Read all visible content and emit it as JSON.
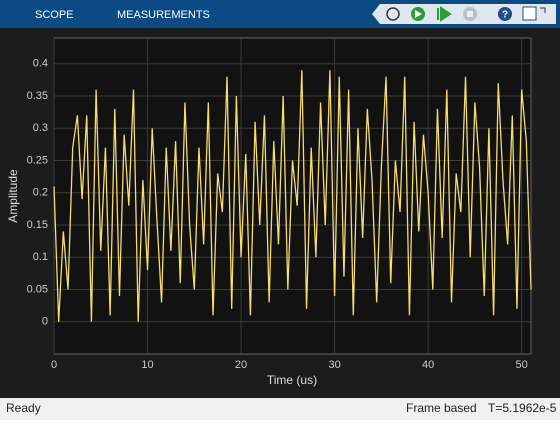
{
  "toolbar": {
    "tabs": [
      "SCOPE",
      "MEASUREMENTS"
    ]
  },
  "chart_data": {
    "type": "line",
    "xlabel": "Time (us)",
    "ylabel": "Amplitude",
    "xlim": [
      0,
      51
    ],
    "ylim": [
      -0.05,
      0.44
    ],
    "xticks": [
      0,
      10,
      20,
      30,
      40,
      50
    ],
    "yticks": [
      0,
      0.05,
      0.1,
      0.15,
      0.2,
      0.25,
      0.3,
      0.35,
      0.4
    ],
    "grid": true,
    "series": [
      {
        "color": "#f7dc6f",
        "x": [
          0,
          0.5,
          1,
          1.5,
          2,
          2.5,
          3,
          3.5,
          4,
          4.5,
          5,
          5.5,
          6,
          6.5,
          7,
          7.5,
          8,
          8.5,
          9,
          9.5,
          10,
          10.5,
          11,
          11.5,
          12,
          12.5,
          13,
          13.5,
          14,
          14.5,
          15,
          15.5,
          16,
          16.5,
          17,
          17.5,
          18,
          18.5,
          19,
          19.5,
          20,
          20.5,
          21,
          21.5,
          22,
          22.5,
          23,
          23.5,
          24,
          24.5,
          25,
          25.5,
          26,
          26.5,
          27,
          27.5,
          28,
          28.5,
          29,
          29.5,
          30,
          30.5,
          31,
          31.5,
          32,
          32.5,
          33,
          33.5,
          34,
          34.5,
          35,
          35.5,
          36,
          36.5,
          37,
          37.5,
          38,
          38.5,
          39,
          39.5,
          40,
          40.5,
          41,
          41.5,
          42,
          42.5,
          43,
          43.5,
          44,
          44.5,
          45,
          45.5,
          46,
          46.5,
          47,
          47.5,
          48,
          48.5,
          49,
          49.5,
          50,
          50.5,
          51
        ],
        "values": [
          0.21,
          0.0,
          0.14,
          0.05,
          0.27,
          0.32,
          0.19,
          0.32,
          0.0,
          0.36,
          0.11,
          0.27,
          0.01,
          0.33,
          0.04,
          0.29,
          0.18,
          0.36,
          0.0,
          0.22,
          0.08,
          0.3,
          0.16,
          0.03,
          0.27,
          0.11,
          0.28,
          0.06,
          0.34,
          0.15,
          0.05,
          0.27,
          0.12,
          0.34,
          0.01,
          0.23,
          0.17,
          0.38,
          0.02,
          0.35,
          0.1,
          0.26,
          0.01,
          0.31,
          0.15,
          0.32,
          0.03,
          0.28,
          0.12,
          0.35,
          0.05,
          0.25,
          0.18,
          0.39,
          0.02,
          0.27,
          0.1,
          0.34,
          0.15,
          0.39,
          0.04,
          0.38,
          0.07,
          0.36,
          0.01,
          0.3,
          0.13,
          0.33,
          0.22,
          0.03,
          0.24,
          0.38,
          0.06,
          0.25,
          0.17,
          0.38,
          0.01,
          0.31,
          0.14,
          0.29,
          0.2,
          0.05,
          0.33,
          0.13,
          0.36,
          0.03,
          0.23,
          0.17,
          0.38,
          0.1,
          0.34,
          0.24,
          0.04,
          0.3,
          0.01,
          0.37,
          0.22,
          0.12,
          0.32,
          0.02,
          0.36,
          0.28,
          0.05
        ]
      }
    ]
  },
  "status_bar": {
    "left": "Ready",
    "mode": "Frame based",
    "time": "T=5.1962e-5"
  }
}
